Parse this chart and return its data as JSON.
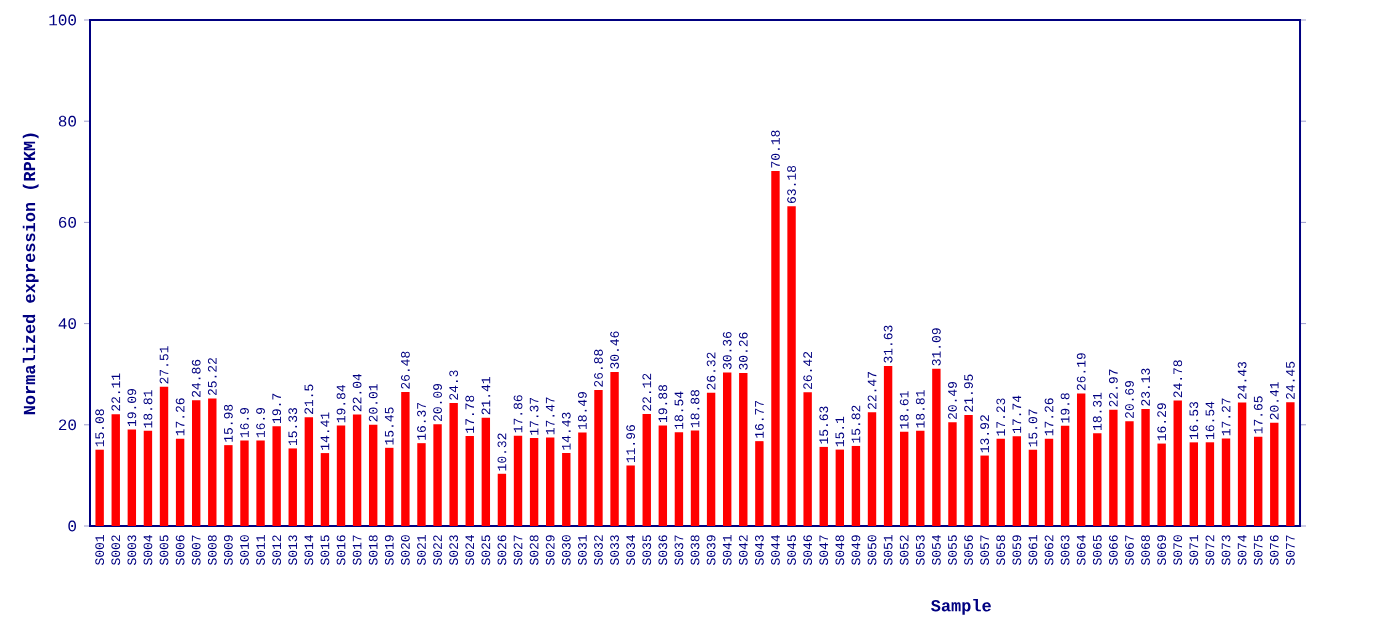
{
  "chart_data": {
    "type": "bar",
    "xlabel": "Sample",
    "ylabel": "Normalized expression (RPKM)",
    "color": "#ff0000",
    "ylim": [
      0,
      100
    ],
    "yticks": [
      0,
      20,
      40,
      60,
      80,
      100
    ],
    "data_labels": true,
    "categories": [
      "S001",
      "S002",
      "S003",
      "S004",
      "S005",
      "S006",
      "S007",
      "S008",
      "S009",
      "S010",
      "S011",
      "S012",
      "S013",
      "S014",
      "S015",
      "S016",
      "S017",
      "S018",
      "S019",
      "S020",
      "S021",
      "S022",
      "S023",
      "S024",
      "S025",
      "S026",
      "S027",
      "S028",
      "S029",
      "S030",
      "S031",
      "S032",
      "S033",
      "S034",
      "S035",
      "S036",
      "S037",
      "S038",
      "S039",
      "S041",
      "S042",
      "S043",
      "S044",
      "S045",
      "S046",
      "S047",
      "S048",
      "S049",
      "S050",
      "S051",
      "S052",
      "S053",
      "S054",
      "S055",
      "S056",
      "S057",
      "S058",
      "S059",
      "S061",
      "S062",
      "S063",
      "S064",
      "S065",
      "S066",
      "S067",
      "S068",
      "S069",
      "S070",
      "S071",
      "S072",
      "S073",
      "S074",
      "S075",
      "S076",
      "S077"
    ],
    "values": [
      15.08,
      22.11,
      19.09,
      18.81,
      27.51,
      17.26,
      24.86,
      25.22,
      15.98,
      16.9,
      16.9,
      19.7,
      15.33,
      21.5,
      14.41,
      19.84,
      22.04,
      20.01,
      15.45,
      26.48,
      16.37,
      20.09,
      24.3,
      17.78,
      21.41,
      10.32,
      17.86,
      17.37,
      17.47,
      14.43,
      18.49,
      26.88,
      30.46,
      11.96,
      22.12,
      19.88,
      18.54,
      18.88,
      26.32,
      30.36,
      30.26,
      16.77,
      70.18,
      63.18,
      26.42,
      15.63,
      15.1,
      15.82,
      22.47,
      31.63,
      18.61,
      18.81,
      31.09,
      20.49,
      21.95,
      13.92,
      17.23,
      17.74,
      15.07,
      17.26,
      19.8,
      26.19,
      18.31,
      22.97,
      20.69,
      23.13,
      16.29,
      24.78,
      16.53,
      16.54,
      17.27,
      24.43,
      17.65,
      20.41,
      24.45
    ]
  }
}
